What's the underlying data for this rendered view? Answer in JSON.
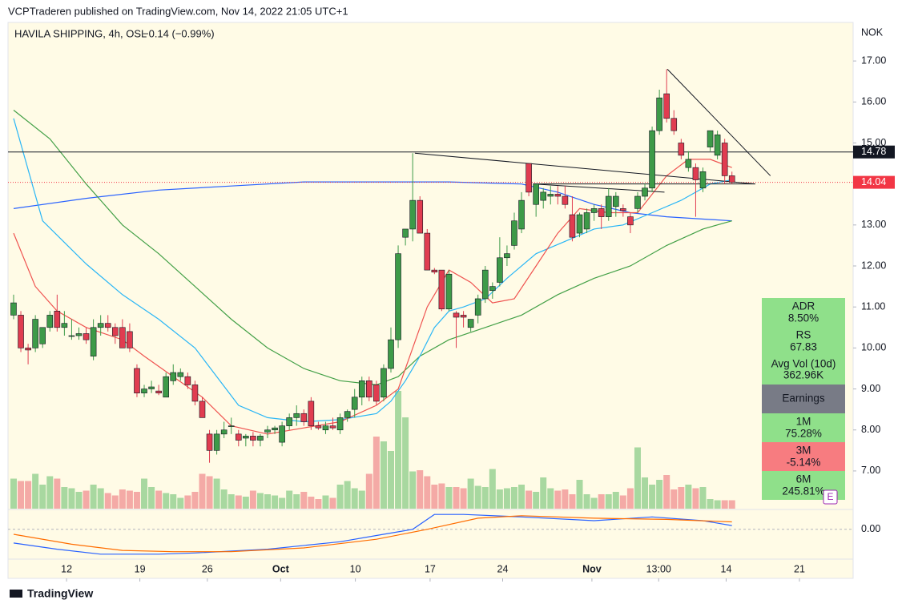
{
  "header": {
    "publisher": "VCPTraderen published on TradingView.com, Nov 14, 2022 21:05 UTC+1",
    "symbol": "HAVILA SHIPPING, 4h, OSL",
    "change": "−0.14 (−0.99%)",
    "currency": "NOK",
    "footer": "TradingView"
  },
  "chart_data": {
    "type": "candlestick",
    "up_color": "#3d9a48",
    "down_color": "#e03c50",
    "grid": false,
    "xlim": [
      -0.77,
      115.7
    ],
    "xticks": [
      {
        "value": 7.3,
        "label": "12"
      },
      {
        "value": 17.4,
        "label": "19"
      },
      {
        "value": 26.7,
        "label": "26"
      },
      {
        "value": 36.8,
        "label": "Oct"
      },
      {
        "value": 47.1,
        "label": "10"
      },
      {
        "value": 57.4,
        "label": "17"
      },
      {
        "value": 67.4,
        "label": "24"
      },
      {
        "value": 79.7,
        "label": "Nov"
      },
      {
        "value": 88.9,
        "label": "13:00"
      },
      {
        "value": 98.2,
        "label": "14"
      },
      {
        "value": 108.3,
        "label": "21"
      }
    ],
    "ylim": [
      6.08,
      17.94
    ],
    "yticks": [
      {
        "value": 7,
        "label": "7.00"
      },
      {
        "value": 8,
        "label": "8.00"
      },
      {
        "value": 9,
        "label": "9.00"
      },
      {
        "value": 10,
        "label": "10.00"
      },
      {
        "value": 11,
        "label": "11.00"
      },
      {
        "value": 12,
        "label": "12.00"
      },
      {
        "value": 13,
        "label": "13.00"
      },
      {
        "value": 14,
        "label": "14.00"
      },
      {
        "value": 15,
        "label": "15.00"
      },
      {
        "value": 16,
        "label": "16.00"
      },
      {
        "value": 17,
        "label": "17.00"
      }
    ],
    "candles": [
      [
        10.8,
        11.3,
        10.7,
        11.1
      ],
      [
        10.8,
        10.9,
        9.9,
        10.0
      ],
      [
        10.0,
        10.1,
        9.6,
        9.95
      ],
      [
        10.0,
        10.8,
        9.9,
        10.7
      ],
      [
        10.1,
        10.5,
        10.0,
        10.5
      ],
      [
        10.5,
        10.9,
        10.4,
        10.8
      ],
      [
        10.9,
        11.3,
        10.4,
        10.5
      ],
      [
        10.5,
        10.9,
        10.3,
        10.6
      ],
      [
        10.3,
        10.7,
        10.2,
        10.3
      ],
      [
        10.3,
        10.5,
        10.2,
        10.35
      ],
      [
        10.35,
        10.5,
        10.1,
        10.2
      ],
      [
        9.8,
        10.7,
        9.7,
        10.5
      ],
      [
        10.5,
        10.8,
        10.3,
        10.6
      ],
      [
        10.6,
        10.8,
        10.4,
        10.5
      ],
      [
        10.5,
        10.6,
        10.1,
        10.3
      ],
      [
        10.5,
        10.7,
        10.0,
        10.0
      ],
      [
        10.4,
        10.6,
        9.9,
        10.0
      ],
      [
        9.5,
        9.6,
        8.8,
        8.9
      ],
      [
        8.9,
        9.1,
        8.8,
        9.0
      ],
      [
        9.0,
        9.2,
        8.9,
        9.05
      ],
      [
        8.95,
        9.1,
        8.85,
        8.9
      ],
      [
        8.8,
        9.4,
        8.8,
        9.3
      ],
      [
        9.2,
        9.6,
        9.1,
        9.4
      ],
      [
        9.3,
        9.5,
        9.2,
        9.4
      ],
      [
        9.3,
        9.4,
        9.0,
        9.1
      ],
      [
        9.1,
        9.2,
        8.6,
        8.7
      ],
      [
        8.7,
        8.8,
        8.3,
        8.3
      ],
      [
        7.9,
        8.0,
        7.2,
        7.5
      ],
      [
        7.5,
        8.0,
        7.4,
        7.9
      ],
      [
        7.9,
        8.2,
        7.8,
        8.0
      ],
      [
        8.1,
        8.3,
        7.9,
        8.1
      ],
      [
        7.9,
        8.0,
        7.6,
        7.75
      ],
      [
        7.8,
        7.9,
        7.6,
        7.85
      ],
      [
        7.85,
        7.95,
        7.6,
        7.75
      ],
      [
        7.75,
        7.9,
        7.6,
        7.85
      ],
      [
        7.95,
        8.1,
        7.8,
        8.0
      ],
      [
        8.0,
        8.1,
        7.9,
        8.05
      ],
      [
        7.7,
        8.2,
        7.6,
        8.1
      ],
      [
        8.1,
        8.4,
        8.0,
        8.3
      ],
      [
        8.3,
        8.6,
        8.1,
        8.4
      ],
      [
        8.4,
        8.5,
        8.1,
        8.2
      ],
      [
        8.7,
        8.8,
        8.0,
        8.1
      ],
      [
        8.1,
        8.2,
        8.0,
        8.05
      ],
      [
        8.0,
        8.2,
        7.9,
        8.1
      ],
      [
        8.1,
        8.3,
        8.0,
        8.05
      ],
      [
        8.0,
        8.4,
        7.9,
        8.3
      ],
      [
        8.3,
        8.5,
        8.2,
        8.45
      ],
      [
        8.5,
        9.0,
        8.3,
        8.8
      ],
      [
        8.8,
        9.3,
        8.6,
        9.2
      ],
      [
        9.2,
        9.3,
        8.7,
        8.8
      ],
      [
        9.1,
        9.2,
        8.6,
        8.7
      ],
      [
        8.8,
        9.6,
        8.7,
        9.5
      ],
      [
        9.5,
        10.5,
        9.4,
        10.2
      ],
      [
        10.2,
        12.5,
        10.0,
        12.3
      ],
      [
        12.7,
        12.9,
        12.5,
        12.9
      ],
      [
        12.9,
        14.75,
        12.6,
        13.6
      ],
      [
        13.6,
        13.7,
        12.8,
        12.8
      ],
      [
        12.8,
        12.9,
        11.9,
        11.9
      ],
      [
        11.9,
        11.95,
        11.8,
        11.85
      ],
      [
        11.9,
        11.9,
        10.9,
        10.95
      ],
      [
        10.95,
        11.9,
        10.9,
        11.8
      ],
      [
        10.85,
        10.9,
        10.0,
        10.75
      ],
      [
        10.8,
        10.9,
        10.5,
        10.75
      ],
      [
        10.5,
        10.7,
        10.4,
        10.7
      ],
      [
        10.8,
        11.3,
        10.6,
        11.2
      ],
      [
        11.2,
        12.0,
        11.1,
        11.9
      ],
      [
        11.4,
        11.6,
        11.2,
        11.5
      ],
      [
        11.6,
        12.7,
        11.5,
        12.2
      ],
      [
        12.2,
        12.5,
        12.0,
        12.3
      ],
      [
        12.5,
        13.3,
        12.4,
        13.1
      ],
      [
        12.9,
        13.8,
        12.8,
        13.6
      ],
      [
        14.5,
        14.5,
        13.7,
        13.8
      ],
      [
        13.5,
        14.0,
        13.2,
        14.0
      ],
      [
        13.6,
        13.9,
        13.4,
        13.8
      ],
      [
        13.7,
        13.95,
        13.5,
        13.75
      ],
      [
        13.75,
        13.95,
        13.5,
        13.7
      ],
      [
        13.7,
        13.95,
        13.4,
        13.5
      ],
      [
        13.25,
        13.7,
        12.6,
        12.7
      ],
      [
        12.8,
        13.3,
        12.7,
        13.25
      ],
      [
        12.9,
        13.4,
        12.8,
        13.3
      ],
      [
        13.3,
        13.5,
        13.1,
        13.4
      ],
      [
        13.4,
        13.5,
        12.9,
        13.2
      ],
      [
        13.2,
        13.9,
        13.1,
        13.7
      ],
      [
        13.45,
        13.8,
        13.2,
        13.7
      ],
      [
        13.4,
        13.5,
        13.2,
        13.35
      ],
      [
        13.2,
        13.3,
        12.8,
        13.0
      ],
      [
        13.4,
        13.8,
        13.3,
        13.7
      ],
      [
        13.7,
        14.0,
        13.6,
        13.9
      ],
      [
        13.9,
        15.4,
        13.8,
        15.3
      ],
      [
        15.3,
        16.3,
        15.2,
        16.1
      ],
      [
        16.2,
        16.8,
        15.5,
        15.6
      ],
      [
        15.6,
        15.8,
        15.2,
        15.3
      ],
      [
        15.0,
        15.1,
        14.6,
        14.7
      ],
      [
        14.4,
        14.8,
        14.3,
        14.6
      ],
      [
        14.4,
        14.5,
        13.2,
        14.1
      ],
      [
        13.9,
        14.4,
        13.8,
        14.3
      ],
      [
        14.9,
        15.3,
        14.8,
        15.3
      ],
      [
        14.7,
        15.3,
        14.6,
        15.2
      ],
      [
        15.0,
        15.1,
        14.0,
        14.2
      ],
      [
        14.2,
        14.3,
        14.0,
        14.04
      ]
    ],
    "volume": [
      250,
      230,
      230,
      290,
      200,
      270,
      250,
      180,
      170,
      140,
      150,
      200,
      170,
      130,
      110,
      160,
      150,
      140,
      250,
      180,
      150,
      130,
      120,
      90,
      110,
      140,
      290,
      270,
      250,
      160,
      120,
      110,
      100,
      150,
      130,
      120,
      110,
      90,
      150,
      120,
      140,
      100,
      80,
      110,
      90,
      200,
      230,
      170,
      150,
      290,
      600,
      560,
      480,
      980,
      760,
      310,
      320,
      270,
      200,
      210,
      180,
      180,
      170,
      250,
      190,
      180,
      330,
      160,
      170,
      180,
      200,
      150,
      140,
      260,
      170,
      150,
      160,
      120,
      240,
      120,
      90,
      120,
      120,
      140,
      110,
      170,
      510,
      260,
      200,
      240,
      280,
      160,
      180,
      200,
      170,
      180,
      80,
      70,
      70,
      70
    ],
    "volume_ylim": [
      0,
      1000
    ],
    "lines": [
      {
        "color": "#2962ff",
        "x": [
          0,
          10,
          20,
          30,
          40,
          50,
          60,
          70,
          75,
          80,
          85,
          90,
          99
        ],
        "values": [
          13.4,
          13.65,
          13.85,
          13.95,
          14.05,
          14.05,
          14.05,
          14.0,
          13.8,
          13.5,
          13.3,
          13.2,
          13.1
        ]
      },
      {
        "color": "#43a047",
        "x": [
          0,
          5,
          10,
          15,
          20,
          25,
          30,
          35,
          40,
          45,
          50,
          53,
          56,
          60,
          65,
          70,
          75,
          80,
          85,
          90,
          95,
          99
        ],
        "values": [
          15.8,
          15.1,
          14.0,
          13.0,
          12.3,
          11.5,
          10.7,
          10.0,
          9.5,
          9.2,
          9.1,
          9.3,
          9.8,
          10.2,
          10.5,
          10.8,
          11.3,
          11.7,
          12.0,
          12.5,
          12.9,
          13.1
        ]
      },
      {
        "color": "#29b6f6",
        "x": [
          0,
          4,
          10,
          15,
          20,
          25,
          31,
          35,
          40,
          45,
          50,
          52,
          54,
          56,
          58,
          60,
          62,
          65,
          68,
          72,
          76,
          80,
          84,
          88,
          92,
          96,
          99
        ],
        "values": [
          15.6,
          13.1,
          12.05,
          11.3,
          10.7,
          10.0,
          8.6,
          8.3,
          8.2,
          8.25,
          8.4,
          8.7,
          9.2,
          9.8,
          10.5,
          10.9,
          11.0,
          11.2,
          11.7,
          12.3,
          12.6,
          12.9,
          13.0,
          13.3,
          13.6,
          14.0,
          14.1
        ]
      },
      {
        "color": "#ef5350",
        "x": [
          0,
          3,
          6,
          10,
          15,
          18,
          22,
          26,
          30,
          35,
          40,
          45,
          50,
          53,
          55,
          57,
          60,
          63,
          66,
          69,
          72,
          75,
          78,
          82,
          86,
          90,
          93,
          96,
          99
        ],
        "values": [
          12.8,
          11.5,
          10.9,
          10.5,
          10.2,
          9.8,
          9.3,
          8.8,
          8.1,
          7.9,
          8.05,
          8.2,
          8.6,
          9.0,
          10.0,
          11.0,
          11.9,
          11.6,
          11.1,
          11.2,
          12.0,
          12.8,
          13.4,
          13.3,
          13.3,
          14.2,
          14.6,
          14.6,
          14.4
        ]
      }
    ],
    "hlines": [
      {
        "value": 14.78,
        "label": "14.78",
        "color": "#131722"
      },
      {
        "value": 14.04,
        "label": "14.04",
        "color": "#f23645"
      }
    ],
    "trendlines": [
      [
        55.3,
        14.75,
        102.2,
        14.0
      ],
      [
        71.6,
        14.0,
        102.2,
        14.0
      ],
      [
        71.6,
        14.0,
        89.7,
        13.8
      ],
      [
        90.1,
        16.8,
        104.3,
        14.2
      ]
    ],
    "macd": {
      "ylim": [
        -1.2,
        0.8
      ],
      "yticks": [
        {
          "value": 0,
          "label": "0.00"
        }
      ],
      "lines": [
        {
          "color": "#2962ff",
          "x": [
            0,
            6,
            12,
            20,
            25,
            35,
            45,
            50,
            55,
            58,
            62,
            70,
            80,
            88,
            95,
            99
          ],
          "values": [
            -0.55,
            -0.8,
            -1.0,
            -1.0,
            -0.95,
            -0.8,
            -0.5,
            -0.25,
            0.0,
            0.6,
            0.6,
            0.5,
            0.35,
            0.5,
            0.35,
            0.15
          ]
        },
        {
          "color": "#ff6d00",
          "x": [
            0,
            8,
            15,
            22,
            30,
            40,
            50,
            57,
            64,
            70,
            80,
            90,
            99
          ],
          "values": [
            -0.2,
            -0.6,
            -0.85,
            -0.9,
            -0.9,
            -0.75,
            -0.4,
            0.0,
            0.45,
            0.55,
            0.45,
            0.4,
            0.3
          ]
        }
      ]
    }
  },
  "stats": {
    "adr_label": "ADR",
    "adr": "8.50%",
    "rs_label": "RS",
    "rs": "67.83",
    "vol_label": "Avg Vol (10d)",
    "vol": "362.96K",
    "earnings": "Earnings",
    "m1_label": "1M",
    "m1": "75.28%",
    "m3_label": "3M",
    "m3": "-5.14%",
    "m6_label": "6M",
    "m6": "245.81%",
    "badge": "E"
  }
}
